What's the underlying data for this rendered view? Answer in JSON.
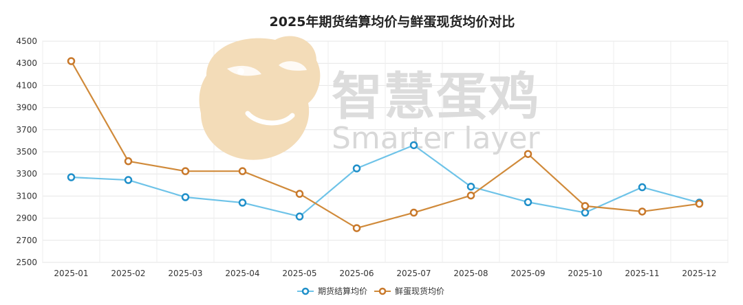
{
  "chart_data": {
    "type": "line",
    "title": "2025年期货结算均价与鲜蛋现货均价对比",
    "categories": [
      "2025-01",
      "2025-02",
      "2025-03",
      "2025-04",
      "2025-05",
      "2025-06",
      "2025-07",
      "2025-08",
      "2025-09",
      "2025-10",
      "2025-11",
      "2025-12"
    ],
    "yticks": [
      2500,
      2700,
      2900,
      3100,
      3300,
      3500,
      3700,
      3900,
      4100,
      4300,
      4500
    ],
    "ylim": [
      2500,
      4500
    ],
    "grid": true,
    "legend_position": "bottom-center",
    "series": [
      {
        "name": "期货结算均价",
        "color": "#6ec3e8",
        "marker_color": "#1f8fc9",
        "values": [
          3270,
          3245,
          3090,
          3040,
          2915,
          3350,
          3560,
          3185,
          3045,
          2950,
          3180,
          3040
        ]
      },
      {
        "name": "鲜蛋现货均价",
        "color": "#d08a3a",
        "marker_color": "#c8782a",
        "values": [
          4320,
          3415,
          3325,
          3325,
          3120,
          2810,
          2950,
          3105,
          3480,
          3010,
          2960,
          3030
        ]
      }
    ]
  },
  "watermark": {
    "brand_cn": "智慧蛋鸡",
    "brand_en": "Smarter layer",
    "logo_icon": "chicken-logo-icon",
    "logo_color": "#f3d9b3"
  }
}
